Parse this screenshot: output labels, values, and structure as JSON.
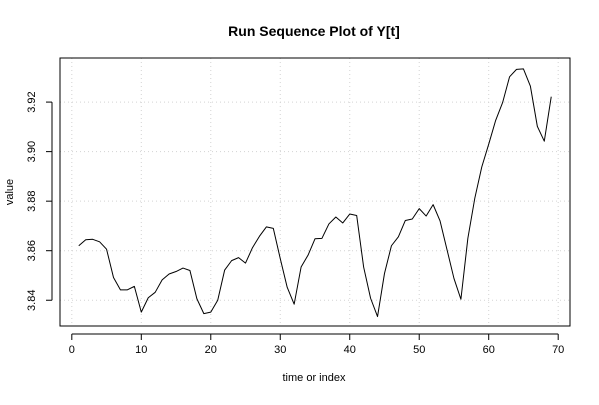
{
  "chart_data": {
    "type": "line",
    "title": "Run Sequence Plot of Y[t]",
    "xlabel": "time or index",
    "ylabel": "value",
    "xlim": [
      -1.7,
      71.7
    ],
    "ylim": [
      3.8296,
      3.9378
    ],
    "x_ticks": [
      0,
      10,
      20,
      30,
      40,
      50,
      60,
      70
    ],
    "x_tick_labels": [
      "0",
      "10",
      "20",
      "30",
      "40",
      "50",
      "60",
      "70"
    ],
    "y_ticks": [
      3.84,
      3.86,
      3.88,
      3.9,
      3.92
    ],
    "y_tick_labels": [
      "3.84",
      "3.86",
      "3.88",
      "3.90",
      "3.92"
    ],
    "grid": true,
    "line_color": "#000000",
    "grid_color": "#d3d3d3",
    "series": [
      {
        "x": [
          1,
          2,
          3,
          4,
          5,
          6,
          7,
          8,
          9,
          10,
          11,
          12,
          13,
          14,
          15,
          16,
          17,
          18,
          19,
          20,
          21,
          22,
          23,
          24,
          25,
          26,
          27,
          28,
          29,
          30,
          31,
          32,
          33,
          34,
          35,
          36,
          37,
          38,
          39,
          40,
          41,
          42,
          43,
          44,
          45,
          46,
          47,
          48,
          49,
          50,
          51,
          52,
          53,
          54,
          55,
          56,
          57,
          58,
          59,
          60,
          61,
          62,
          63,
          64,
          65,
          66,
          67,
          68,
          69
        ],
        "values": [
          3.862,
          3.8644,
          3.8646,
          3.8636,
          3.8606,
          3.8492,
          3.8442,
          3.8442,
          3.8456,
          3.8352,
          3.841,
          3.8432,
          3.8482,
          3.8506,
          3.8516,
          3.853,
          3.852,
          3.8406,
          3.8346,
          3.8352,
          3.84,
          3.8522,
          3.856,
          3.8572,
          3.855,
          3.8612,
          3.8658,
          3.8696,
          3.869,
          3.8568,
          3.8452,
          3.8384,
          3.8534,
          3.8582,
          3.8648,
          3.865,
          3.8708,
          3.8736,
          3.8712,
          3.8748,
          3.8742,
          3.8534,
          3.8408,
          3.8334,
          3.8508,
          3.862,
          3.8656,
          3.8722,
          3.8728,
          3.877,
          3.874,
          3.8786,
          3.872,
          3.8604,
          3.8488,
          3.8404,
          3.865,
          3.8812,
          3.8938,
          3.903,
          3.9126,
          3.9198,
          3.9302,
          3.9332,
          3.9334,
          3.9264,
          3.9102,
          3.9042,
          3.9222
        ]
      }
    ]
  }
}
